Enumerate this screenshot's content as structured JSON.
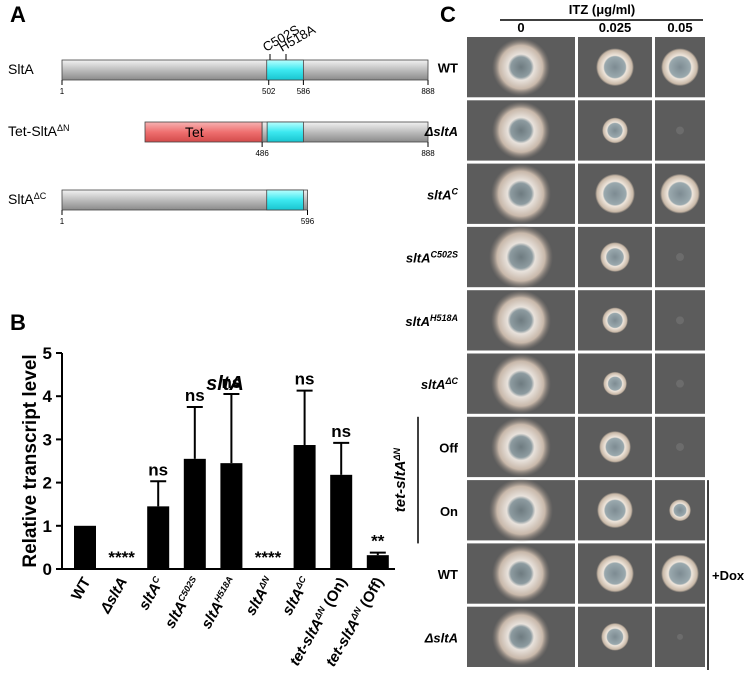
{
  "panel_a": {
    "label": "A",
    "constructs": [
      {
        "name": {
          "base": "SltA"
        },
        "ticks": [
          1,
          502,
          586,
          888
        ],
        "mutations": [
          "C502S",
          "H518A"
        ]
      },
      {
        "name": {
          "base": "Tet-SltA",
          "sup": "ΔN"
        },
        "tag": "Tet",
        "ticks": [
          486,
          888
        ]
      },
      {
        "name": {
          "base": "SltA",
          "sup": "ΔC"
        },
        "ticks": [
          1,
          596
        ]
      }
    ]
  },
  "chart_data": {
    "type": "bar",
    "panel": "B",
    "title": "sltA",
    "y_label": "Relative transcript level",
    "categories": [
      {
        "base": "WT"
      },
      {
        "base": "ΔsltA"
      },
      {
        "base": "sltA",
        "sup": "C"
      },
      {
        "base": "sltA",
        "sup": "C502S"
      },
      {
        "base": "sltA",
        "sup": "H518A"
      },
      {
        "base": "sltA",
        "sup": "ΔN"
      },
      {
        "base": "sltA",
        "sup": "ΔC"
      },
      {
        "base": "tet-sltA",
        "sup": "ΔN",
        "suffix": " (On)"
      },
      {
        "base": "tet-sltA",
        "sup": "ΔN",
        "suffix": " (Off)"
      }
    ],
    "values": [
      1.0,
      0,
      1.45,
      2.55,
      2.45,
      0,
      2.87,
      2.18,
      0.32
    ],
    "errors": [
      0,
      0,
      0.58,
      1.2,
      1.6,
      0,
      1.26,
      0.74,
      0.06
    ],
    "annotations": [
      null,
      "****",
      "ns",
      "ns",
      "ns",
      "****",
      "ns",
      "ns",
      "**"
    ],
    "color": "#000000",
    "ylim": [
      0,
      5
    ],
    "yticks": [
      0,
      1,
      2,
      3,
      4,
      5
    ]
  },
  "panel_c": {
    "label": "C",
    "header": "ITZ (μg/ml)",
    "columns": [
      "0",
      "0.025",
      "0.05"
    ],
    "rows": [
      {
        "base": "WT"
      },
      {
        "base": "ΔsltA"
      },
      {
        "base": "sltA",
        "sup": "C"
      },
      {
        "base": "sltA",
        "sup": "C502S"
      },
      {
        "base": "sltA",
        "sup": "H518A"
      },
      {
        "base": "sltA",
        "sup": "ΔC"
      },
      {
        "base": "Off"
      },
      {
        "base": "On"
      },
      {
        "base": "WT"
      },
      {
        "base": "ΔsltA"
      }
    ],
    "group": {
      "base": "tet-sltA",
      "sup": "ΔN"
    },
    "dox": "+Dox"
  }
}
